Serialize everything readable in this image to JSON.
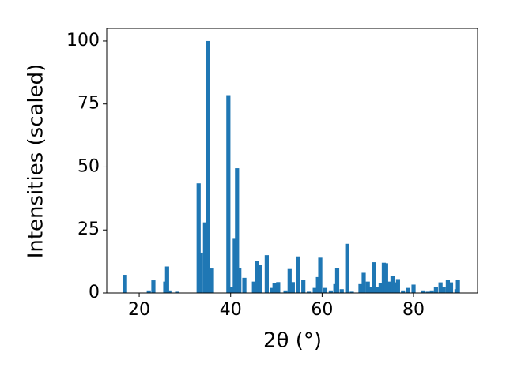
{
  "chart_data": {
    "type": "bar",
    "xlabel": "2θ (°)",
    "ylabel": "Intensities (scaled)",
    "x": [
      16.9,
      22.1,
      23.1,
      25.7,
      26.1,
      26.6,
      28.3,
      33.0,
      33.5,
      34.4,
      35.1,
      35.9,
      39.5,
      40.2,
      40.9,
      41.4,
      41.9,
      43.0,
      45.1,
      45.8,
      46.5,
      47.9,
      49.1,
      49.6,
      50.4,
      52.0,
      52.9,
      53.6,
      54.8,
      55.9,
      57.1,
      58.4,
      59.1,
      59.6,
      60.7,
      61.9,
      62.9,
      63.3,
      64.3,
      65.5,
      66.5,
      68.4,
      69.1,
      70.0,
      70.5,
      71.4,
      72.2,
      72.8,
      73.5,
      74.0,
      74.7,
      75.4,
      75.9,
      76.6,
      77.7,
      78.8,
      80.0,
      82.1,
      83.1,
      84.0,
      84.9,
      85.9,
      86.6,
      87.5,
      88.2,
      89.4,
      89.7
    ],
    "values": [
      7.2,
      1,
      5,
      4.5,
      10.5,
      1,
      0.5,
      43.5,
      16,
      28,
      100,
      9.7,
      78.5,
      2.5,
      21.5,
      49.5,
      10,
      6,
      4.5,
      12.8,
      11,
      15,
      2,
      3.8,
      4.3,
      1,
      9.5,
      4.3,
      14.5,
      5.3,
      0.5,
      2,
      6.3,
      14,
      2,
      1,
      3.5,
      9.8,
      1.5,
      19.5,
      0.5,
      3.5,
      8,
      4.5,
      2.5,
      12.2,
      2.5,
      4,
      12,
      11.8,
      4.5,
      6.8,
      4.2,
      5.5,
      1,
      2,
      3.3,
      1,
      0.5,
      1,
      2.5,
      4.2,
      2.5,
      5.3,
      4.2,
      1.5,
      5.3
    ],
    "color": "#1f77b4",
    "xlim": [
      12.9,
      94.0
    ],
    "xticks": [
      20,
      40,
      60,
      80
    ],
    "ylim": [
      0,
      105
    ],
    "yticks": [
      0,
      25,
      50,
      75,
      100
    ]
  }
}
